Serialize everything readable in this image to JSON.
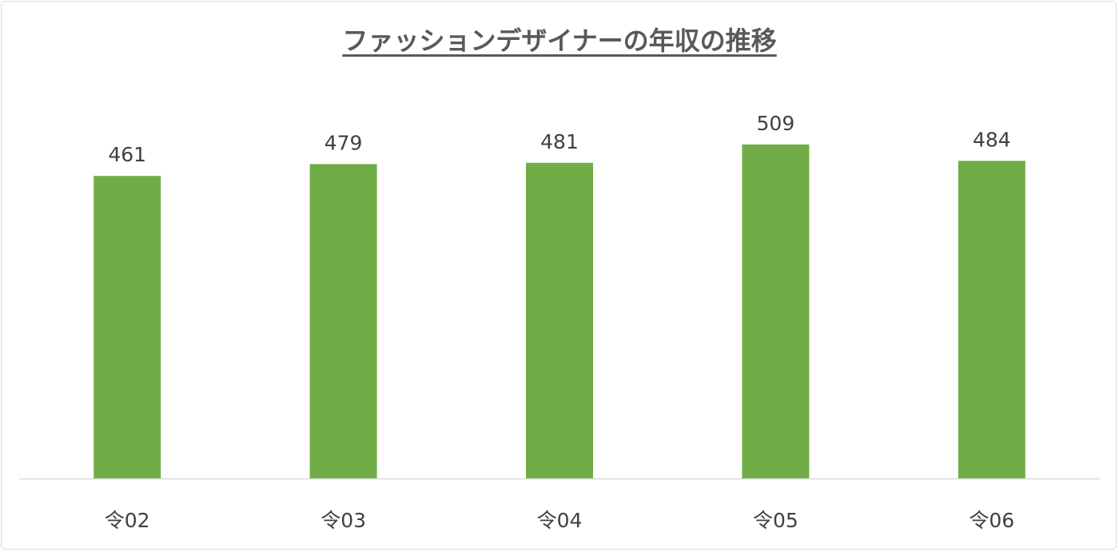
{
  "chart_data": {
    "type": "bar",
    "title": "ファッションデザイナーの年収の推移",
    "categories": [
      "令02",
      "令03",
      "令04",
      "令05",
      "令06"
    ],
    "values": [
      461,
      479,
      481,
      509,
      484
    ],
    "xlabel": "",
    "ylabel": "",
    "ylim": [
      0,
      600
    ],
    "grid": false,
    "legend": "none",
    "data_labels": true,
    "colors": {
      "bar": "#70AD47",
      "text": "#404040",
      "title": "#595959",
      "axis": "#d9d9d9"
    }
  }
}
